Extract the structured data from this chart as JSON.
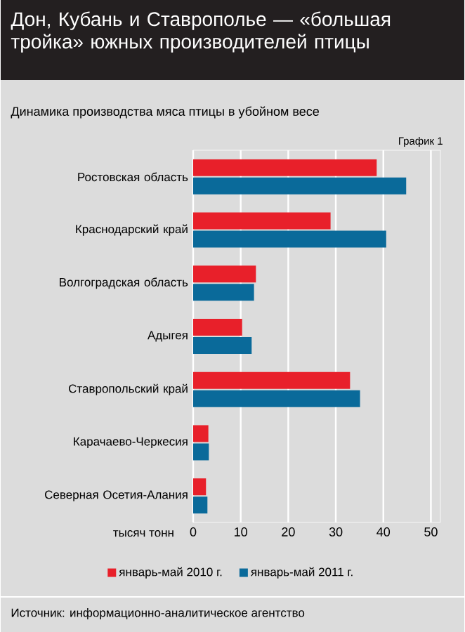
{
  "chart_data": {
    "type": "bar",
    "orientation": "horizontal",
    "title": "Дон, Кубань и Ставрополье — «большая тройка» южных производителей птицы",
    "subtitle": "Динамика производства мяса птицы в убойном весе",
    "xlabel": "тысяч тонн",
    "annotations": [
      "График 1",
      "Источник: информационно-аналитическое агентство"
    ],
    "categories": [
      "Ростовская область",
      "Краснодарский край",
      "Волгоградская область",
      "Адыгея",
      "Ставропольский край",
      "Карачаево-Черкесия",
      "Северная Осетия-Алания"
    ],
    "series": [
      {
        "name": "январь-май 2010 г.",
        "color": "#e8202a",
        "values": [
          38.6,
          28.9,
          13.2,
          10.3,
          33.0,
          3.2,
          2.7
        ]
      },
      {
        "name": "январь-май 2011 г.",
        "color": "#0a6a9a",
        "values": [
          44.8,
          40.6,
          12.8,
          12.3,
          35.1,
          3.3,
          3.0
        ]
      }
    ],
    "xlim": [
      0,
      52
    ],
    "xticks": [
      0,
      10,
      20,
      30,
      40,
      50
    ],
    "grid": "x",
    "legend": "bottom"
  }
}
